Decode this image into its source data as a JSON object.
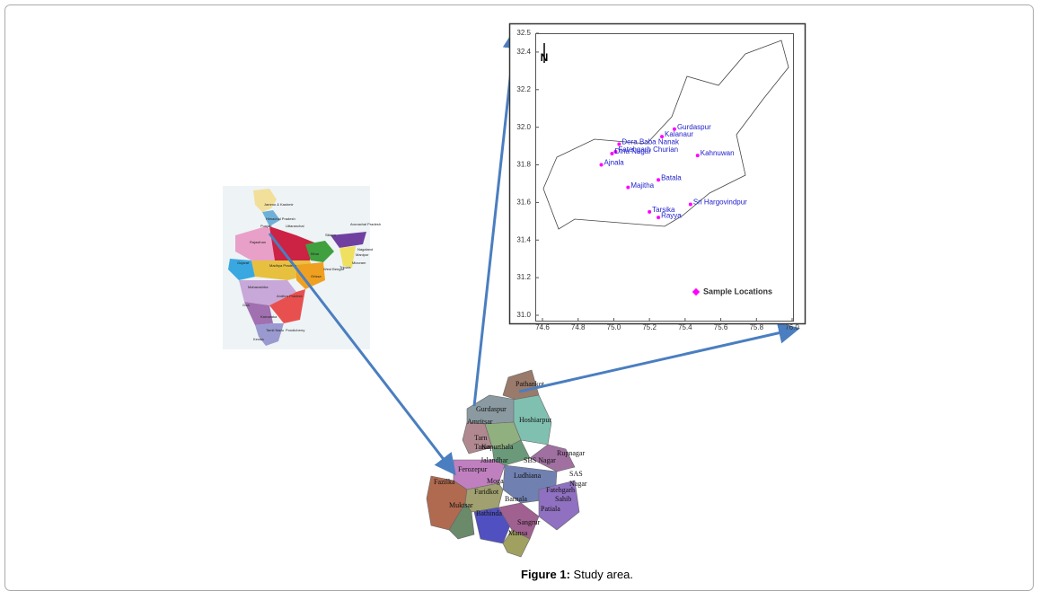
{
  "chart_data": {
    "type": "scatter",
    "north_label": "N",
    "xlim": [
      74.6,
      76.0
    ],
    "xticks": [
      74.6,
      74.8,
      {
        "value": 75.0,
        "label": "75.0"
      },
      75.2,
      75.4,
      75.6,
      75.8,
      {
        "value": 76.0,
        "label": "76.0"
      }
    ],
    "ylim": [
      31.0,
      32.5
    ],
    "yticks": [
      {
        "value": 31.0,
        "label": "31.0"
      },
      31.2,
      31.4,
      31.6,
      31.8,
      {
        "value": 32.0,
        "label": "32.0"
      },
      32.2,
      32.4,
      32.5
    ],
    "series": [
      {
        "name": "Sample Locations",
        "color": "#ff00ff",
        "labels": [
          "Gurdaspur",
          "Kalanaur",
          "Dera Baba Nanak",
          "Fatehgarh Churian",
          "Dina Nagar",
          "Ajnala",
          "Kahnuwan",
          "Batala",
          "Majitha",
          "Sri Hargovindpur",
          "Tarsika",
          "Rayya"
        ],
        "x": [
          75.34,
          75.27,
          75.03,
          75.01,
          74.99,
          74.93,
          75.47,
          75.25,
          75.08,
          75.43,
          75.2,
          75.25
        ],
        "values": [
          31.99,
          31.95,
          31.91,
          31.87,
          31.86,
          31.8,
          31.85,
          31.72,
          31.68,
          31.59,
          31.55,
          31.52
        ]
      }
    ],
    "legend": "lower-right"
  },
  "india_map": {
    "labels": [
      "Jammu & Kashmir",
      "Himachal Pradesh",
      "Punjab",
      "Uttaranchal",
      "Rajasthan",
      "Gujarat",
      "Madhya Pradesh",
      "Maharashtra",
      "Andhra Pradesh",
      "Karnataka",
      "Goa",
      "Kerala",
      "Tamil Nadu",
      "Pondicherry",
      "Sikkim",
      "Arunachal Pradesh",
      "Nagaland",
      "Manipur",
      "Mizoram",
      "Tripura",
      "Bihar",
      "West Bengal",
      "Orissa"
    ]
  },
  "punjab_map": {
    "labels": [
      "Pathankot",
      "Gurdaspur",
      "Amritsar",
      "Hoshiarpur",
      "Tarn",
      "Taran",
      "Kapurthala",
      "Jalandhar",
      "SBS Nagar",
      "Rupnagar",
      "Ferozepur",
      "Ludhiana",
      "Moga",
      "Fazilka",
      "Faridkot",
      "Barnala",
      "Fatehgarh",
      "Sahib",
      "SAS",
      "Nagar",
      "Muktsar",
      "Bathinda",
      "Sangrur",
      "Patiala",
      "Mansa"
    ]
  },
  "caption": {
    "label": "Figure 1:",
    "text": "Study area."
  }
}
